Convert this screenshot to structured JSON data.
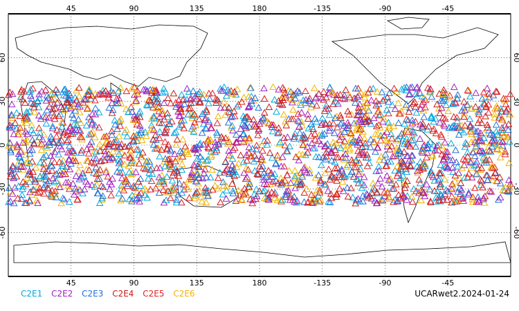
{
  "map": {
    "lon_ticks_top": [
      "45",
      "90",
      "135",
      "180",
      "-135",
      "-90",
      "-45"
    ],
    "lon_ticks_bottom": [
      "45",
      "90",
      "135",
      "180",
      "-135",
      "-90",
      "-45"
    ],
    "lat_ticks_left": [
      "60",
      "30",
      "0",
      "-30",
      "-60"
    ],
    "lat_ticks_right": [
      "60",
      "30",
      "0",
      "-30",
      "-60"
    ],
    "lon_values": [
      45,
      90,
      135,
      180,
      225,
      270,
      315
    ],
    "lat_values": [
      60,
      30,
      0,
      -30,
      -60
    ],
    "lon_range": [
      0,
      360
    ],
    "lat_range": [
      -90,
      90
    ],
    "grid": "dotted",
    "marker": "triangle-outline",
    "band_lat": [
      -40,
      40
    ]
  },
  "legend": [
    {
      "label": "C2E1",
      "color": "#00a8e0"
    },
    {
      "label": "C2E2",
      "color": "#a020c0"
    },
    {
      "label": "C2E3",
      "color": "#1e6fd8"
    },
    {
      "label": "C2E4",
      "color": "#c81818"
    },
    {
      "label": "C2E5",
      "color": "#e02020"
    },
    {
      "label": "C2E6",
      "color": "#f0b400"
    }
  ],
  "footer": {
    "stamp": "UCARwet2.2024-01-24"
  }
}
